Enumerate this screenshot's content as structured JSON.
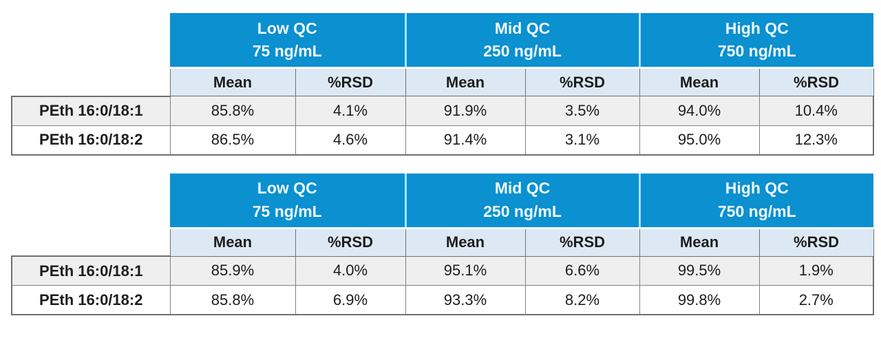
{
  "colors": {
    "header_blue": "#0b90d0",
    "header_text": "#eefaff",
    "header_divider_cyan": "#a9e5f6",
    "subheader_bg": "#dce9f5",
    "row_alt_bg": "#efefef",
    "row_bg": "#ffffff",
    "border_gray": "#808080",
    "text": "#1d1d1b"
  },
  "tables": [
    {
      "qc_levels": [
        {
          "label": "Low QC",
          "concentration": "75 ng/mL"
        },
        {
          "label": "Mid QC",
          "concentration": "250 ng/mL"
        },
        {
          "label": "High QC",
          "concentration": "750 ng/mL"
        }
      ],
      "stat_headers": [
        "Mean",
        "%RSD",
        "Mean",
        "%RSD",
        "Mean",
        "%RSD"
      ],
      "rows": [
        {
          "analyte": "PEth 16:0/18:1",
          "values": [
            "85.8%",
            "4.1%",
            "91.9%",
            "3.5%",
            "94.0%",
            "10.4%"
          ]
        },
        {
          "analyte": "PEth 16:0/18:2",
          "values": [
            "86.5%",
            "4.6%",
            "91.4%",
            "3.1%",
            "95.0%",
            "12.3%"
          ]
        }
      ]
    },
    {
      "qc_levels": [
        {
          "label": "Low QC",
          "concentration": "75 ng/mL"
        },
        {
          "label": "Mid QC",
          "concentration": "250 ng/mL"
        },
        {
          "label": "High QC",
          "concentration": "750 ng/mL"
        }
      ],
      "stat_headers": [
        "Mean",
        "%RSD",
        "Mean",
        "%RSD",
        "Mean",
        "%RSD"
      ],
      "rows": [
        {
          "analyte": "PEth 16:0/18:1",
          "values": [
            "85.9%",
            "4.0%",
            "95.1%",
            "6.6%",
            "99.5%",
            "1.9%"
          ]
        },
        {
          "analyte": "PEth 16:0/18:2",
          "values": [
            "85.8%",
            "6.9%",
            "93.3%",
            "8.2%",
            "99.8%",
            "2.7%"
          ]
        }
      ]
    }
  ]
}
